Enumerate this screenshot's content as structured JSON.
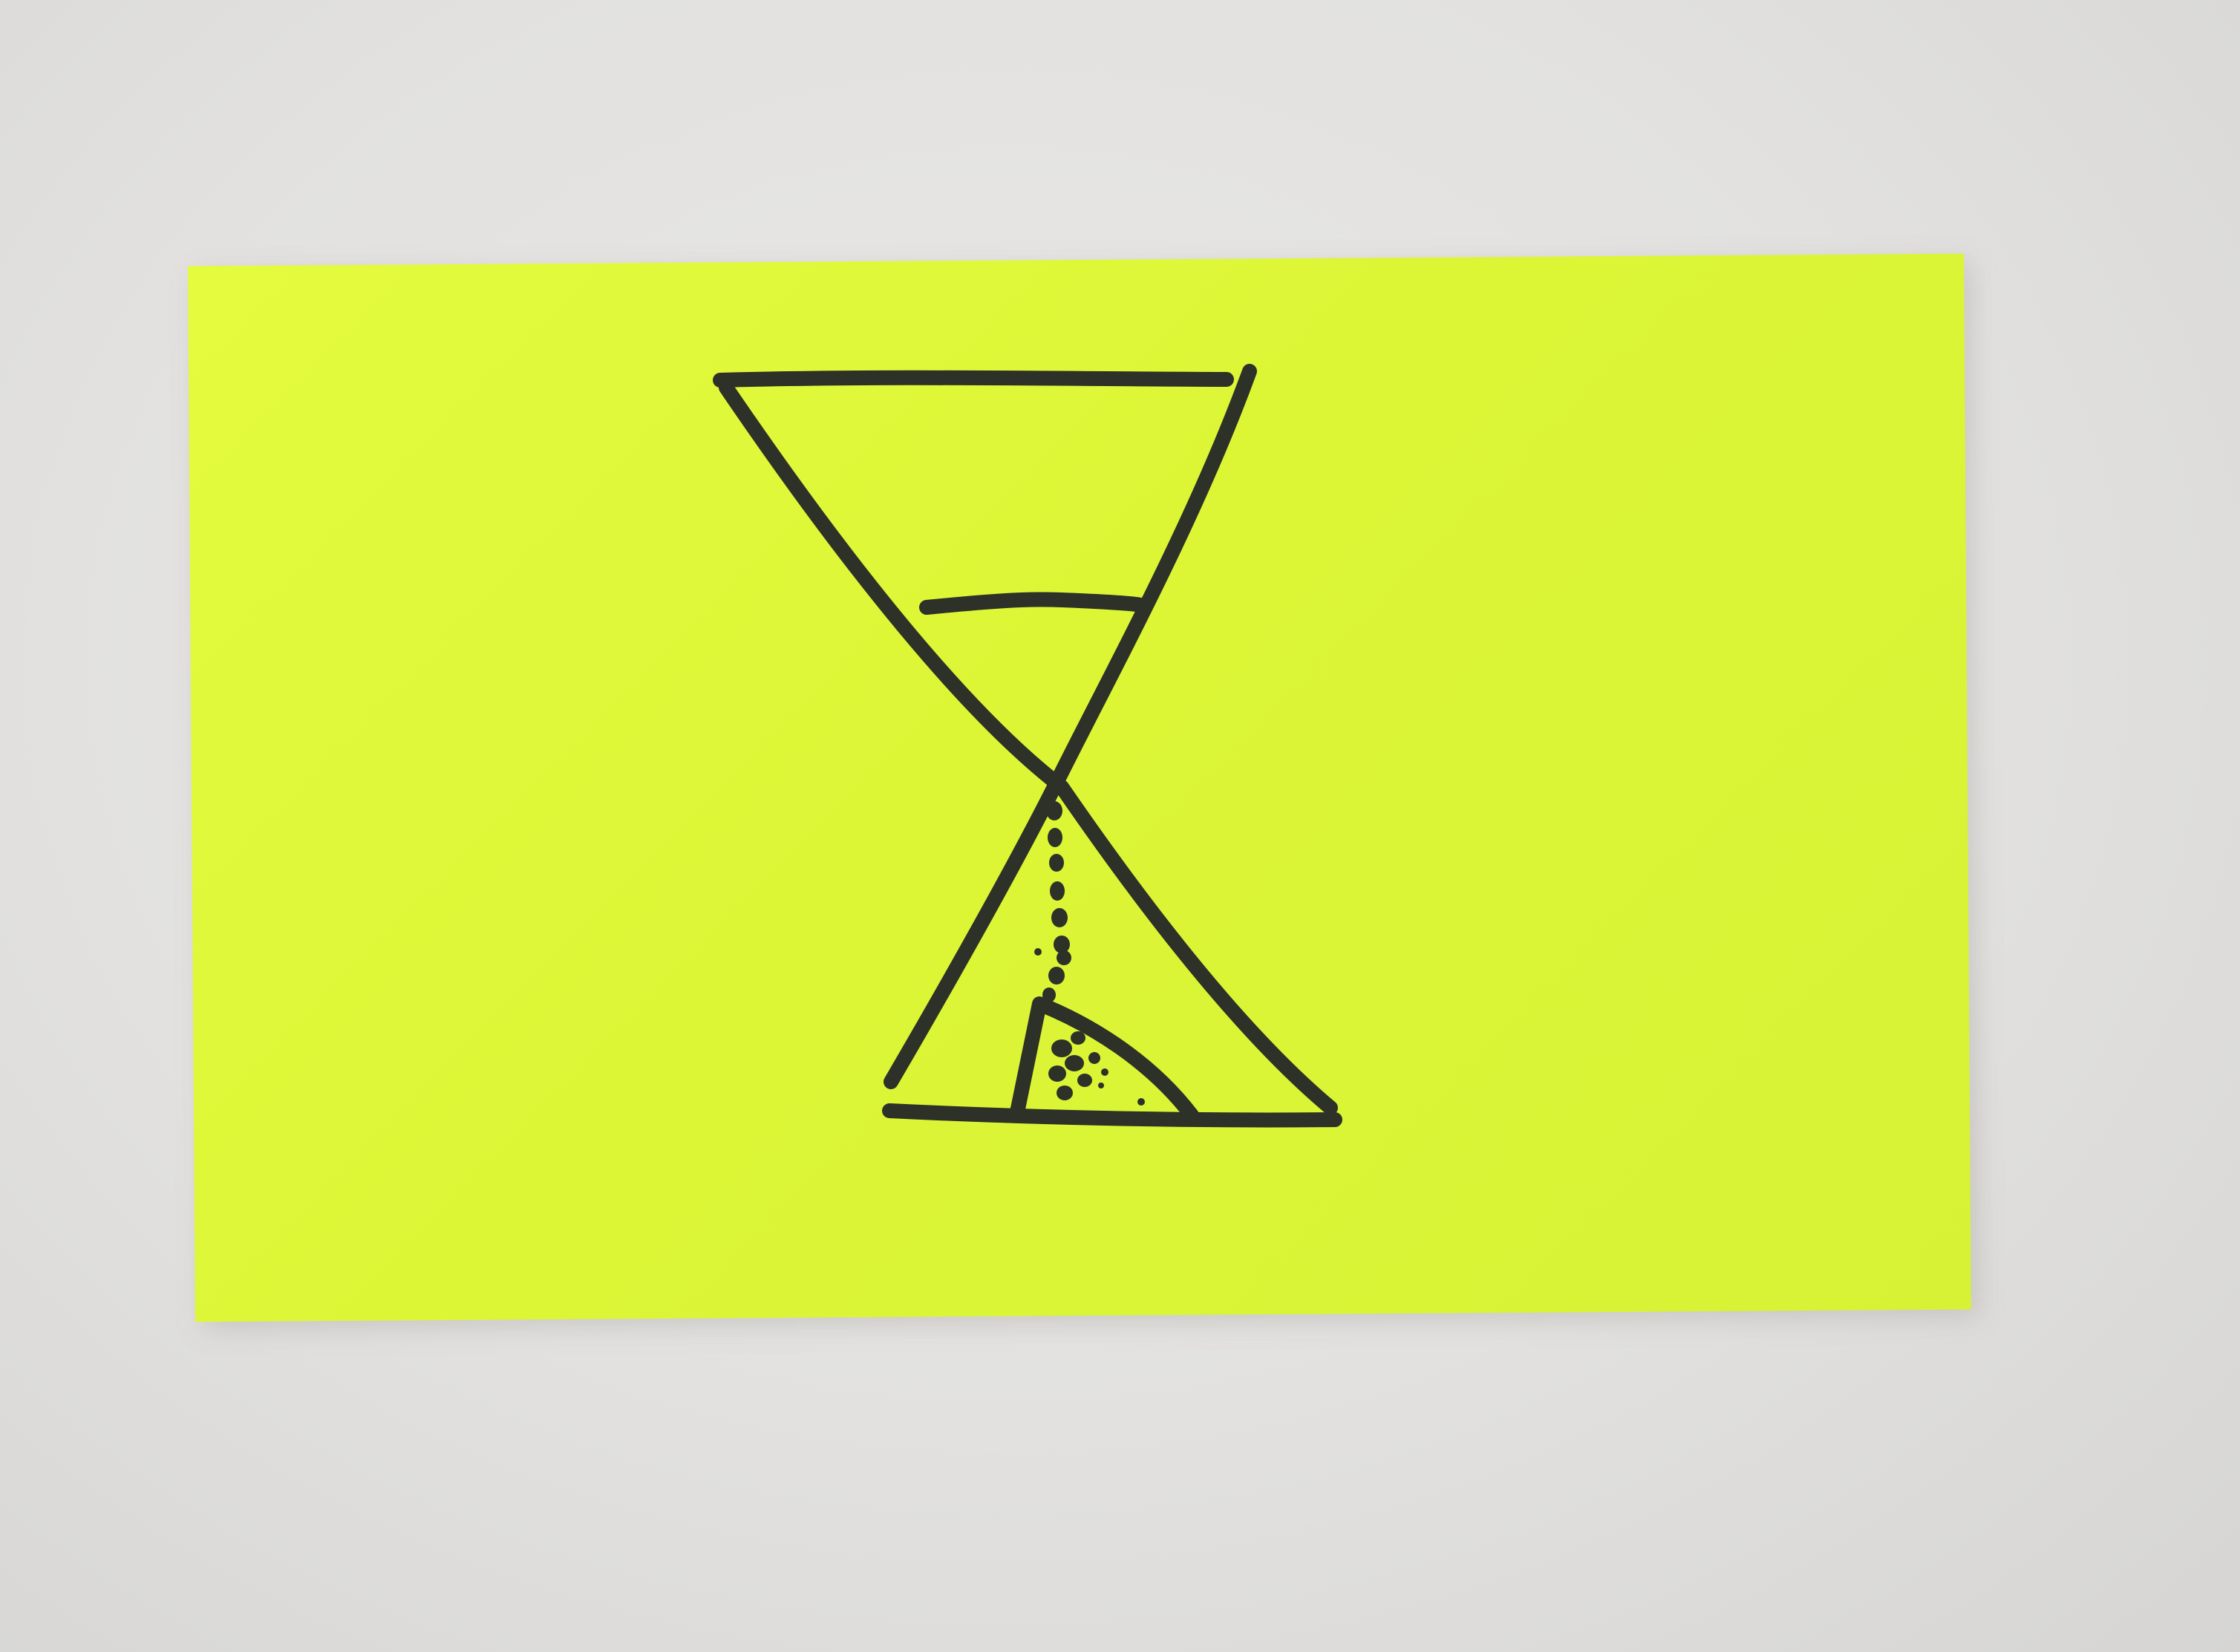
{
  "scene": {
    "subject": "hourglass-sketch",
    "colors": {
      "background": "#e2e1df",
      "card": "#dcf636",
      "ink": "#2d3127"
    }
  }
}
